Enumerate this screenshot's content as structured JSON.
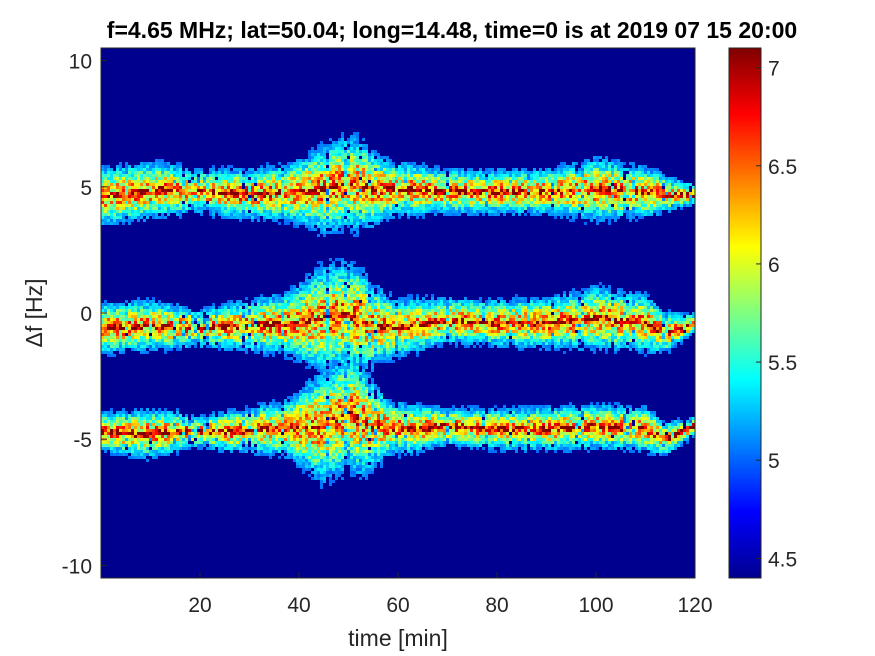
{
  "chart_data": {
    "type": "heatmap",
    "title": "f=4.65 MHz;  lat=50.04; long=14.48, time=0 is at 2019 07 15 20:00",
    "xlabel": "time [min]",
    "ylabel": "Δf [Hz]",
    "xlim": [
      0,
      120
    ],
    "ylim": [
      -10.5,
      10.5
    ],
    "x_ticks": [
      20,
      40,
      60,
      80,
      100,
      120
    ],
    "y_ticks": [
      -10,
      -5,
      0,
      5,
      10
    ],
    "colorbar": {
      "clim": [
        4.4,
        7.1
      ],
      "ticks": [
        4.5,
        5,
        5.5,
        6,
        6.5,
        7
      ],
      "colormap": "jet"
    },
    "background_color": "#00008f",
    "bands": [
      {
        "center_hz": [
          [
            0,
            4.6
          ],
          [
            8,
            4.8
          ],
          [
            12,
            4.9
          ],
          [
            20,
            4.8
          ],
          [
            30,
            4.7
          ],
          [
            40,
            4.8
          ],
          [
            45,
            4.9
          ],
          [
            50,
            5.2
          ],
          [
            55,
            4.9
          ],
          [
            62,
            4.9
          ],
          [
            70,
            4.8
          ],
          [
            80,
            4.8
          ],
          [
            90,
            4.8
          ],
          [
            100,
            4.9
          ],
          [
            108,
            4.8
          ],
          [
            115,
            4.7
          ],
          [
            120,
            4.7
          ]
        ],
        "halo_width_hz": [
          [
            0,
            0.9
          ],
          [
            10,
            0.9
          ],
          [
            20,
            0.7
          ],
          [
            38,
            0.9
          ],
          [
            45,
            1.4
          ],
          [
            52,
            1.5
          ],
          [
            58,
            0.9
          ],
          [
            70,
            0.7
          ],
          [
            90,
            0.7
          ],
          [
            100,
            1.0
          ],
          [
            110,
            0.8
          ],
          [
            120,
            0.3
          ]
        ]
      },
      {
        "center_hz": [
          [
            0,
            -0.6
          ],
          [
            10,
            -0.5
          ],
          [
            20,
            -0.6
          ],
          [
            30,
            -0.5
          ],
          [
            40,
            -0.4
          ],
          [
            45,
            -0.2
          ],
          [
            50,
            -0.1
          ],
          [
            55,
            -0.5
          ],
          [
            60,
            -0.6
          ],
          [
            70,
            -0.3
          ],
          [
            80,
            -0.4
          ],
          [
            90,
            -0.4
          ],
          [
            100,
            -0.2
          ],
          [
            110,
            -0.4
          ],
          [
            114,
            -0.8
          ],
          [
            120,
            -0.4
          ]
        ],
        "halo_width_hz": [
          [
            0,
            0.8
          ],
          [
            10,
            0.8
          ],
          [
            20,
            0.6
          ],
          [
            38,
            1.0
          ],
          [
            45,
            1.7
          ],
          [
            52,
            1.7
          ],
          [
            58,
            1.0
          ],
          [
            70,
            0.7
          ],
          [
            90,
            0.8
          ],
          [
            100,
            1.0
          ],
          [
            110,
            0.9
          ],
          [
            120,
            0.3
          ]
        ]
      },
      {
        "center_hz": [
          [
            0,
            -4.7
          ],
          [
            8,
            -4.8
          ],
          [
            15,
            -4.7
          ],
          [
            25,
            -4.7
          ],
          [
            35,
            -4.6
          ],
          [
            45,
            -4.5
          ],
          [
            50,
            -3.9
          ],
          [
            55,
            -4.5
          ],
          [
            62,
            -4.6
          ],
          [
            70,
            -4.5
          ],
          [
            80,
            -4.6
          ],
          [
            90,
            -4.6
          ],
          [
            100,
            -4.5
          ],
          [
            110,
            -4.6
          ],
          [
            114,
            -5.0
          ],
          [
            120,
            -4.5
          ]
        ],
        "halo_width_hz": [
          [
            0,
            0.6
          ],
          [
            10,
            0.8
          ],
          [
            20,
            0.5
          ],
          [
            38,
            0.9
          ],
          [
            45,
            1.8
          ],
          [
            52,
            1.9
          ],
          [
            58,
            0.9
          ],
          [
            70,
            0.6
          ],
          [
            90,
            0.7
          ],
          [
            100,
            0.7
          ],
          [
            110,
            0.7
          ],
          [
            120,
            0.3
          ]
        ]
      }
    ]
  }
}
